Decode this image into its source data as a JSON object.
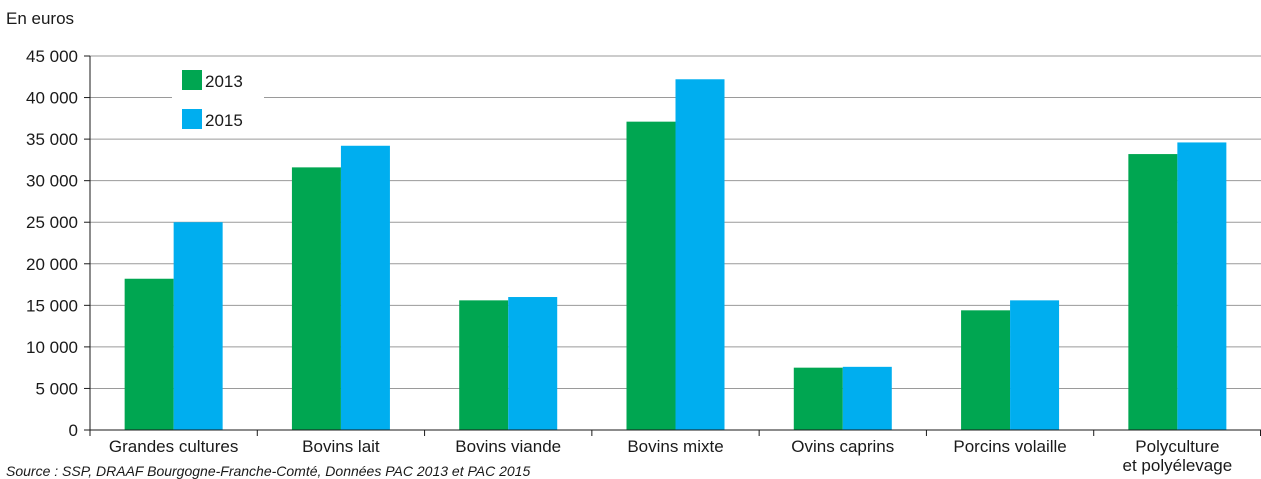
{
  "chart_data": {
    "type": "bar",
    "ylabel": "En euros",
    "ylim": [
      0,
      45000
    ],
    "yticks": [
      0,
      5000,
      10000,
      15000,
      20000,
      25000,
      30000,
      35000,
      40000,
      45000
    ],
    "ytick_labels": [
      "0",
      "5 000",
      "10 000",
      "15 000",
      "20 000",
      "25 000",
      "30 000",
      "35 000",
      "40 000",
      "45 000"
    ],
    "categories": [
      [
        "Grandes cultures"
      ],
      [
        "Bovins lait"
      ],
      [
        "Bovins viande"
      ],
      [
        "Bovins mixte"
      ],
      [
        "Ovins caprins"
      ],
      [
        "Porcins volaille"
      ],
      [
        "Polyculture",
        "et polyélevage"
      ]
    ],
    "series": [
      {
        "name": "2013",
        "color": "#00a651",
        "values": [
          18200,
          31600,
          15600,
          37100,
          7500,
          14400,
          33200
        ]
      },
      {
        "name": "2015",
        "color": "#00aeef",
        "values": [
          25000,
          34200,
          16000,
          42200,
          7600,
          15600,
          34600
        ]
      }
    ],
    "grid": true,
    "legend_position": "top-left",
    "source": "Source : SSP, DRAAF Bourgogne-Franche-Comté, Données PAC 2013 et PAC 2015"
  }
}
